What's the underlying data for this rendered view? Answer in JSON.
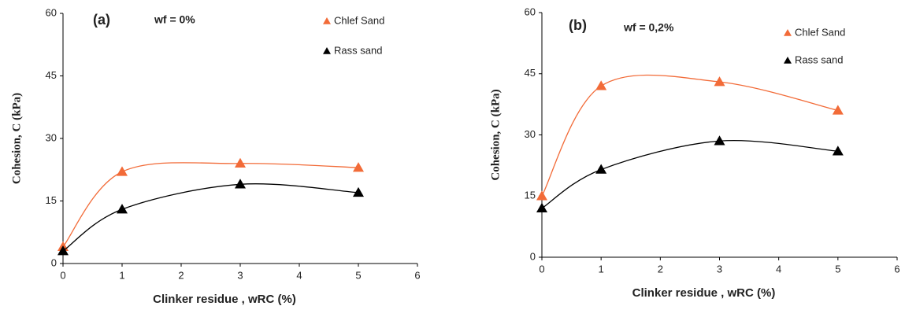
{
  "chart_data": [
    {
      "type": "line",
      "x_label": "Clinker residue , wRC (%)",
      "y_label": "Cohesion,  C (kPa)",
      "annotations": [
        "(a)",
        "wf = 0%"
      ],
      "x": [
        0,
        1,
        3,
        5
      ],
      "xlim": [
        0,
        6
      ],
      "xticks": [
        0,
        1,
        2,
        3,
        4,
        5,
        6
      ],
      "ylim": [
        0,
        60
      ],
      "yticks": [
        0,
        15,
        30,
        45,
        60
      ],
      "grid": false,
      "legend": "upper right",
      "series": [
        {
          "name": "Chlef Sand",
          "color": "#f26b38",
          "values": [
            4,
            22,
            24,
            23
          ]
        },
        {
          "name": "Rass sand",
          "color": "#000000",
          "values": [
            3,
            13,
            19,
            17
          ]
        }
      ]
    },
    {
      "type": "line",
      "x_label": "Clinker residue , wRC (%)",
      "y_label": "Cohesion,  C (kPa)",
      "annotations": [
        "(b)",
        "wf = 0,2%"
      ],
      "x": [
        0,
        1,
        3,
        5
      ],
      "xlim": [
        0,
        6
      ],
      "xticks": [
        0,
        1,
        2,
        3,
        4,
        5,
        6
      ],
      "ylim": [
        0,
        60
      ],
      "yticks": [
        0,
        15,
        30,
        45,
        60
      ],
      "grid": false,
      "legend": "upper right",
      "series": [
        {
          "name": "Chlef Sand",
          "color": "#f26b38",
          "values": [
            15,
            42,
            43,
            36
          ]
        },
        {
          "name": "Rass sand",
          "color": "#000000",
          "values": [
            12,
            21.5,
            28.5,
            26
          ]
        }
      ]
    }
  ]
}
